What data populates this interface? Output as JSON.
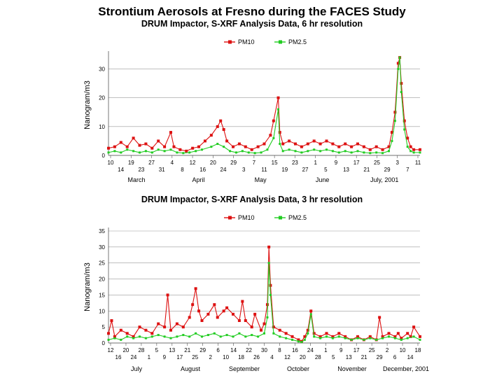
{
  "title": "Strontium Aerosols at Fresno during the FACES Study",
  "chart_data": [
    {
      "type": "line",
      "title": "DRUM Impactor, S-XRF Analysis Data, 6 hr resolution",
      "ylabel": "Nanogram/m3",
      "ylim": [
        0,
        35
      ],
      "yticks": [
        0,
        10,
        20,
        30
      ],
      "xlim": [
        0,
        1
      ],
      "legend": [
        "PM10",
        "PM2.5"
      ],
      "colors": {
        "PM10": "#dd1111",
        "PM2.5": "#22cc22"
      },
      "tick_row1": [
        "10",
        "19",
        "27",
        "4",
        "12",
        "20",
        "29",
        "7",
        "15",
        "23",
        "1",
        "9",
        "17",
        "25",
        "3",
        "11"
      ],
      "tick_row2": [
        "14",
        "23",
        "31",
        "8",
        "16",
        "24",
        "3",
        "11",
        "19",
        "27",
        "5",
        "13",
        "21",
        "29",
        "7"
      ],
      "months": [
        "March",
        "April",
        "May",
        "June",
        "July, 2001"
      ],
      "series": [
        {
          "name": "PM10",
          "points": [
            [
              0.0,
              2.5
            ],
            [
              0.02,
              3
            ],
            [
              0.04,
              4.5
            ],
            [
              0.06,
              3
            ],
            [
              0.08,
              6
            ],
            [
              0.1,
              3.5
            ],
            [
              0.12,
              4
            ],
            [
              0.14,
              2.5
            ],
            [
              0.16,
              5
            ],
            [
              0.18,
              3
            ],
            [
              0.2,
              8
            ],
            [
              0.21,
              3
            ],
            [
              0.23,
              2
            ],
            [
              0.25,
              1.5
            ],
            [
              0.27,
              2.5
            ],
            [
              0.29,
              3
            ],
            [
              0.31,
              5
            ],
            [
              0.33,
              7
            ],
            [
              0.35,
              10
            ],
            [
              0.36,
              12
            ],
            [
              0.37,
              9
            ],
            [
              0.38,
              5
            ],
            [
              0.4,
              3
            ],
            [
              0.42,
              4
            ],
            [
              0.44,
              3
            ],
            [
              0.46,
              2
            ],
            [
              0.48,
              3
            ],
            [
              0.5,
              4
            ],
            [
              0.52,
              7
            ],
            [
              0.53,
              12
            ],
            [
              0.545,
              20
            ],
            [
              0.55,
              8
            ],
            [
              0.56,
              4
            ],
            [
              0.58,
              5
            ],
            [
              0.6,
              4
            ],
            [
              0.62,
              3
            ],
            [
              0.64,
              4
            ],
            [
              0.66,
              5
            ],
            [
              0.68,
              4
            ],
            [
              0.7,
              5
            ],
            [
              0.72,
              4
            ],
            [
              0.74,
              3
            ],
            [
              0.76,
              4
            ],
            [
              0.78,
              3
            ],
            [
              0.8,
              4
            ],
            [
              0.82,
              3
            ],
            [
              0.84,
              2
            ],
            [
              0.86,
              3
            ],
            [
              0.88,
              2
            ],
            [
              0.9,
              3
            ],
            [
              0.91,
              8
            ],
            [
              0.92,
              15
            ],
            [
              0.93,
              32
            ],
            [
              0.935,
              34
            ],
            [
              0.94,
              25
            ],
            [
              0.95,
              12
            ],
            [
              0.96,
              6
            ],
            [
              0.97,
              3
            ],
            [
              0.98,
              2
            ],
            [
              1.0,
              2
            ]
          ]
        },
        {
          "name": "PM2.5",
          "points": [
            [
              0.0,
              1
            ],
            [
              0.02,
              1.5
            ],
            [
              0.04,
              1
            ],
            [
              0.06,
              2
            ],
            [
              0.08,
              1.5
            ],
            [
              0.1,
              1
            ],
            [
              0.12,
              1.5
            ],
            [
              0.14,
              1
            ],
            [
              0.16,
              2
            ],
            [
              0.18,
              1.5
            ],
            [
              0.2,
              2
            ],
            [
              0.22,
              1
            ],
            [
              0.24,
              0.8
            ],
            [
              0.26,
              1
            ],
            [
              0.28,
              1.5
            ],
            [
              0.3,
              2
            ],
            [
              0.33,
              3
            ],
            [
              0.35,
              4
            ],
            [
              0.37,
              3
            ],
            [
              0.39,
              1.5
            ],
            [
              0.41,
              1
            ],
            [
              0.43,
              1.5
            ],
            [
              0.45,
              1
            ],
            [
              0.47,
              0.8
            ],
            [
              0.49,
              1
            ],
            [
              0.51,
              2
            ],
            [
              0.53,
              6
            ],
            [
              0.545,
              16
            ],
            [
              0.55,
              4
            ],
            [
              0.56,
              1.5
            ],
            [
              0.58,
              2
            ],
            [
              0.6,
              1.5
            ],
            [
              0.62,
              1
            ],
            [
              0.64,
              1.5
            ],
            [
              0.66,
              2
            ],
            [
              0.68,
              1.5
            ],
            [
              0.7,
              2
            ],
            [
              0.72,
              1.5
            ],
            [
              0.74,
              1
            ],
            [
              0.76,
              1.5
            ],
            [
              0.78,
              1
            ],
            [
              0.8,
              1.5
            ],
            [
              0.82,
              1
            ],
            [
              0.84,
              0.8
            ],
            [
              0.86,
              1
            ],
            [
              0.88,
              0.8
            ],
            [
              0.9,
              1.5
            ],
            [
              0.91,
              5
            ],
            [
              0.92,
              12
            ],
            [
              0.93,
              30
            ],
            [
              0.935,
              34
            ],
            [
              0.94,
              22
            ],
            [
              0.95,
              9
            ],
            [
              0.96,
              3
            ],
            [
              0.97,
              1.5
            ],
            [
              0.98,
              1
            ],
            [
              1.0,
              1
            ]
          ]
        }
      ]
    },
    {
      "type": "line",
      "title": "DRUM Impactor, S-XRF Analysis Data, 3 hr resolution",
      "ylabel": "Nanogram/m3",
      "ylim": [
        0,
        35
      ],
      "yticks": [
        0,
        5,
        10,
        15,
        20,
        25,
        30,
        35
      ],
      "xlim": [
        0,
        1
      ],
      "legend": [
        "PM10",
        "PM2.5"
      ],
      "colors": {
        "PM10": "#dd1111",
        "PM2.5": "#22cc22"
      },
      "tick_row1": [
        "12",
        "20",
        "28",
        "5",
        "13",
        "21",
        "29",
        "6",
        "14",
        "22",
        "30",
        "8",
        "16",
        "24",
        "1",
        "9",
        "17",
        "25",
        "2",
        "10",
        "18"
      ],
      "tick_row2": [
        "16",
        "24",
        "1",
        "9",
        "17",
        "25",
        "2",
        "10",
        "18",
        "26",
        "4",
        "12",
        "20",
        "28",
        "5",
        "13",
        "21",
        "29",
        "6",
        "14"
      ],
      "months": [
        "July",
        "August",
        "September",
        "October",
        "November",
        "December, 2001"
      ],
      "series": [
        {
          "name": "PM10",
          "points": [
            [
              0.0,
              3
            ],
            [
              0.01,
              7
            ],
            [
              0.02,
              2
            ],
            [
              0.04,
              4
            ],
            [
              0.06,
              3
            ],
            [
              0.08,
              2
            ],
            [
              0.1,
              5
            ],
            [
              0.12,
              4
            ],
            [
              0.14,
              3
            ],
            [
              0.16,
              6
            ],
            [
              0.18,
              5
            ],
            [
              0.19,
              15
            ],
            [
              0.2,
              4
            ],
            [
              0.22,
              6
            ],
            [
              0.24,
              5
            ],
            [
              0.26,
              8
            ],
            [
              0.27,
              12
            ],
            [
              0.28,
              17
            ],
            [
              0.29,
              10
            ],
            [
              0.3,
              7
            ],
            [
              0.32,
              9
            ],
            [
              0.34,
              12
            ],
            [
              0.35,
              8
            ],
            [
              0.37,
              10
            ],
            [
              0.38,
              11
            ],
            [
              0.4,
              9
            ],
            [
              0.42,
              7
            ],
            [
              0.43,
              13
            ],
            [
              0.44,
              7
            ],
            [
              0.46,
              5
            ],
            [
              0.47,
              9
            ],
            [
              0.49,
              4
            ],
            [
              0.5,
              6
            ],
            [
              0.51,
              12
            ],
            [
              0.515,
              30
            ],
            [
              0.52,
              18
            ],
            [
              0.53,
              5
            ],
            [
              0.55,
              4
            ],
            [
              0.57,
              3
            ],
            [
              0.59,
              2
            ],
            [
              0.61,
              1
            ],
            [
              0.62,
              0.5
            ],
            [
              0.63,
              2
            ],
            [
              0.64,
              4
            ],
            [
              0.65,
              10
            ],
            [
              0.66,
              3
            ],
            [
              0.68,
              2
            ],
            [
              0.7,
              3
            ],
            [
              0.72,
              2
            ],
            [
              0.74,
              3
            ],
            [
              0.76,
              2
            ],
            [
              0.78,
              1
            ],
            [
              0.8,
              2
            ],
            [
              0.82,
              1
            ],
            [
              0.84,
              2
            ],
            [
              0.86,
              1
            ],
            [
              0.87,
              8
            ],
            [
              0.88,
              2
            ],
            [
              0.9,
              3
            ],
            [
              0.92,
              2
            ],
            [
              0.93,
              3
            ],
            [
              0.94,
              1.5
            ],
            [
              0.96,
              3
            ],
            [
              0.97,
              2
            ],
            [
              0.98,
              5
            ],
            [
              1.0,
              2
            ]
          ]
        },
        {
          "name": "PM2.5",
          "points": [
            [
              0.0,
              1
            ],
            [
              0.02,
              1.5
            ],
            [
              0.04,
              1
            ],
            [
              0.06,
              2
            ],
            [
              0.08,
              1.5
            ],
            [
              0.1,
              2
            ],
            [
              0.12,
              1.5
            ],
            [
              0.14,
              2
            ],
            [
              0.16,
              2.5
            ],
            [
              0.18,
              2
            ],
            [
              0.2,
              1.5
            ],
            [
              0.22,
              2
            ],
            [
              0.24,
              2.5
            ],
            [
              0.26,
              2
            ],
            [
              0.28,
              3
            ],
            [
              0.3,
              2
            ],
            [
              0.32,
              2.5
            ],
            [
              0.34,
              3
            ],
            [
              0.36,
              2
            ],
            [
              0.38,
              2.5
            ],
            [
              0.4,
              2
            ],
            [
              0.42,
              3
            ],
            [
              0.44,
              2
            ],
            [
              0.46,
              2.5
            ],
            [
              0.48,
              2
            ],
            [
              0.5,
              3
            ],
            [
              0.51,
              8
            ],
            [
              0.515,
              25
            ],
            [
              0.52,
              15
            ],
            [
              0.53,
              3
            ],
            [
              0.55,
              2
            ],
            [
              0.57,
              1.5
            ],
            [
              0.59,
              1
            ],
            [
              0.61,
              0.5
            ],
            [
              0.62,
              0.3
            ],
            [
              0.63,
              1
            ],
            [
              0.64,
              3
            ],
            [
              0.65,
              9
            ],
            [
              0.66,
              2
            ],
            [
              0.68,
              1.5
            ],
            [
              0.7,
              2
            ],
            [
              0.72,
              1.5
            ],
            [
              0.74,
              2
            ],
            [
              0.76,
              1.5
            ],
            [
              0.78,
              1
            ],
            [
              0.8,
              1.5
            ],
            [
              0.82,
              1
            ],
            [
              0.84,
              1.5
            ],
            [
              0.86,
              1
            ],
            [
              0.88,
              1.5
            ],
            [
              0.9,
              2
            ],
            [
              0.92,
              1.5
            ],
            [
              0.94,
              1
            ],
            [
              0.96,
              1.5
            ],
            [
              0.98,
              2
            ],
            [
              1.0,
              1
            ]
          ]
        }
      ]
    }
  ]
}
